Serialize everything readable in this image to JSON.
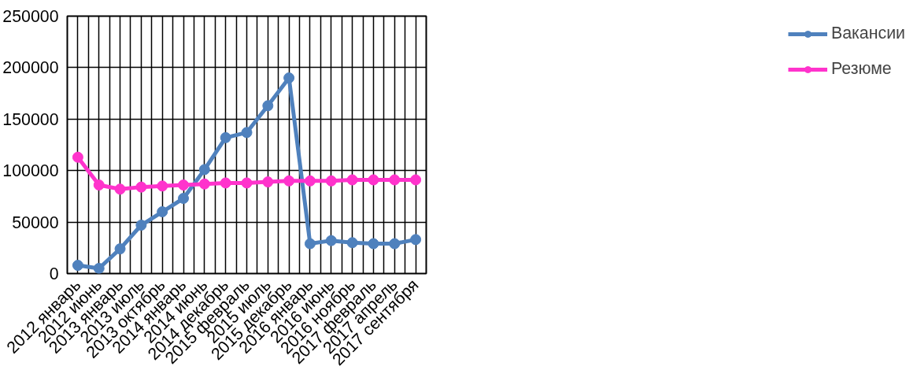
{
  "chart_data": {
    "type": "line",
    "categories": [
      "2012 январь",
      "2012 июнь",
      "2013 январь",
      "2013 июль",
      "2013 октябрь",
      "2014 январь",
      "2014 июнь",
      "2014 декабрь",
      "2015 февраль",
      "2015 июль",
      "2015 декабрь",
      "2016 январь",
      "2016 июнь",
      "2016 ноябрь",
      "2017 февраль",
      "2017 апрель",
      "2017 сентября"
    ],
    "series": [
      {
        "name": "Вакансии",
        "color": "#4f81bd",
        "values": [
          8000,
          5000,
          24000,
          47000,
          60000,
          73000,
          101000,
          132000,
          137000,
          163000,
          190000,
          29000,
          32000,
          30000,
          29000,
          29000,
          33000
        ]
      },
      {
        "name": "Резюме",
        "color": "#ff33cc",
        "values": [
          113000,
          86000,
          82000,
          84000,
          85000,
          86000,
          87000,
          88000,
          88000,
          89000,
          90000,
          90000,
          90000,
          91000,
          91000,
          91000,
          91000
        ]
      }
    ],
    "ylim": [
      0,
      250000
    ],
    "yticks": [
      0,
      50000,
      100000,
      150000,
      200000,
      250000
    ],
    "grid": true,
    "legend": "right",
    "marker": "circle",
    "line_style": "solid"
  }
}
